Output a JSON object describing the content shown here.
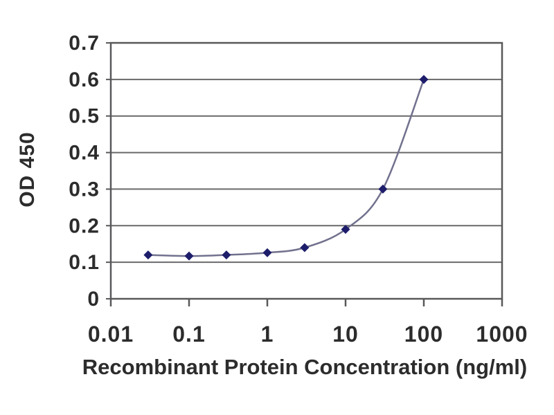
{
  "chart_data": {
    "type": "line",
    "title": "",
    "xlabel": "Recombinant Protein Concentration (ng/ml)",
    "ylabel": "OD 450",
    "x_scale": "log",
    "xlim": [
      0.01,
      1000
    ],
    "ylim": [
      0,
      0.7
    ],
    "x_ticks": [
      0.01,
      0.1,
      1,
      10,
      100,
      1000
    ],
    "x_tick_labels": [
      "0.01",
      "0.1",
      "1",
      "10",
      "100",
      "1000"
    ],
    "y_ticks": [
      0,
      0.1,
      0.2,
      0.3,
      0.4,
      0.5,
      0.6,
      0.7
    ],
    "y_tick_labels": [
      "0",
      "0.1",
      "0.2",
      "0.3",
      "0.4",
      "0.5",
      "0.6",
      "0.7"
    ],
    "grid": "horizontal",
    "legend": "none",
    "series": [
      {
        "name": "OD 450",
        "marker": "diamond",
        "x": [
          0.03,
          0.1,
          0.3,
          1,
          3,
          10,
          30,
          100
        ],
        "y": [
          0.12,
          0.117,
          0.12,
          0.126,
          0.14,
          0.19,
          0.3,
          0.6
        ]
      }
    ]
  },
  "style": {
    "background": "#ffffff",
    "axis_color": "#58585a",
    "grid_color": "#69696b",
    "text_color": "#2c2c2c",
    "line_color": "#71718e",
    "marker_color": "#1d1d6b"
  }
}
